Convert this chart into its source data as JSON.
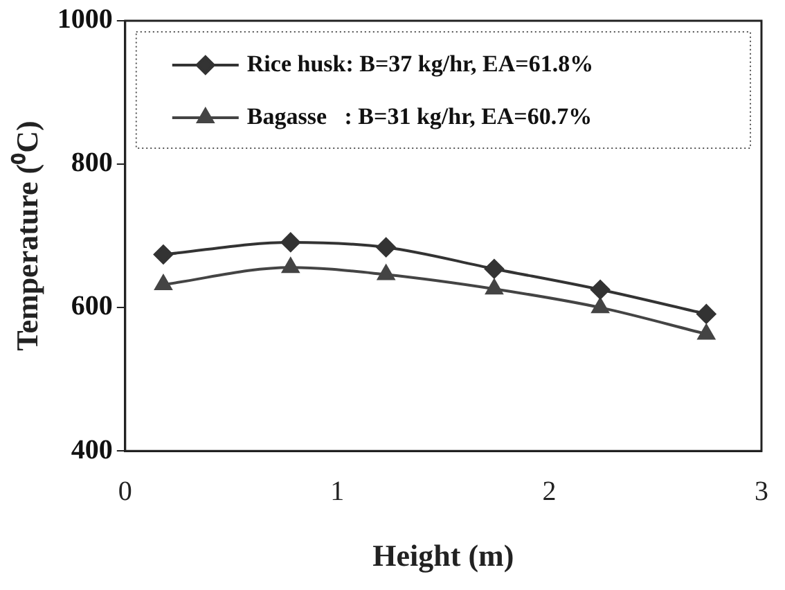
{
  "chart_data": {
    "type": "line",
    "xlabel": "Height (m)",
    "ylabel": "Temperature (⁰C)",
    "xlim": [
      0,
      3
    ],
    "xticks": [
      0,
      1,
      2,
      3
    ],
    "ylim": [
      400,
      1000
    ],
    "yticks": [
      400,
      600,
      800,
      1000
    ],
    "legend": "top",
    "grid": false,
    "line_style": "solid",
    "series": [
      {
        "name": "Rice husk: B=37 kg/hr, EA=61.8%",
        "color": "#333333",
        "marker": "diamond",
        "x": [
          0.18,
          0.78,
          1.23,
          1.74,
          2.24,
          2.74
        ],
        "values": [
          674,
          691,
          684,
          654,
          625,
          591
        ]
      },
      {
        "name": "Bagasse   : B=31 kg/hr, EA=60.7%",
        "color": "#444444",
        "marker": "triangle",
        "x": [
          0.18,
          0.78,
          1.23,
          1.74,
          2.24,
          2.74
        ],
        "values": [
          632,
          656,
          646,
          626,
          600,
          563
        ]
      }
    ]
  }
}
